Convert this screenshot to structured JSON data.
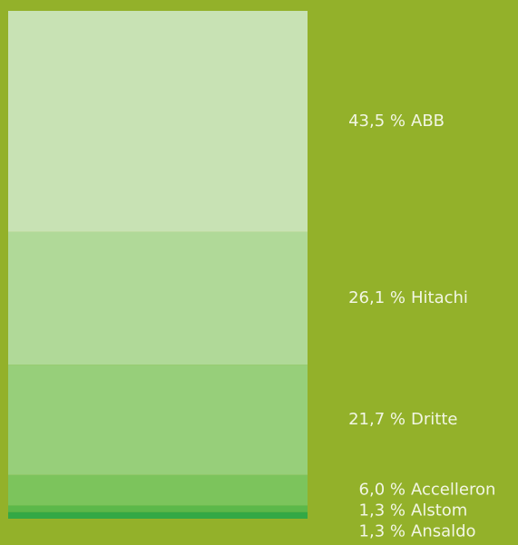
{
  "chart_data": {
    "type": "bar",
    "series": [
      {
        "name": "ABB",
        "color": "#c8e2b4",
        "values": [
          43.5
        ],
        "value_labels": [
          "43,5 %"
        ]
      },
      {
        "name": "Hitachi",
        "color": "#b0d998",
        "values": [
          26.1
        ],
        "value_labels": [
          "26,1 %"
        ]
      },
      {
        "name": "Dritte",
        "color": "#97cf7a",
        "values": [
          21.7
        ],
        "value_labels": [
          "21,7 %"
        ]
      },
      {
        "name": "Accelleron",
        "color": "#7cc45c",
        "values": [
          6.0
        ],
        "value_labels": [
          "6,0 %"
        ]
      },
      {
        "name": "Alstom",
        "color": "#5cb84a",
        "values": [
          1.3
        ],
        "value_labels": [
          "1,3 %"
        ]
      },
      {
        "name": "Ansaldo",
        "color": "#33a845",
        "values": [
          1.3
        ],
        "value_labels": [
          "1,3 %"
        ]
      }
    ]
  }
}
